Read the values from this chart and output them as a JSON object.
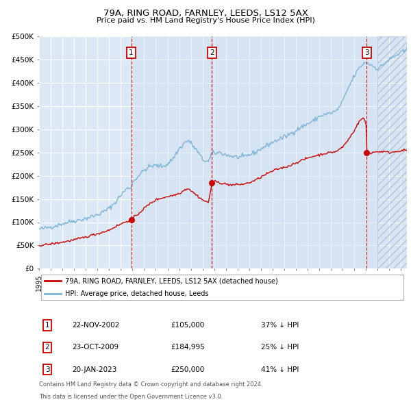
{
  "title1": "79A, RING ROAD, FARNLEY, LEEDS, LS12 5AX",
  "title2": "Price paid vs. HM Land Registry's House Price Index (HPI)",
  "ylabel_ticks": [
    "£0",
    "£50K",
    "£100K",
    "£150K",
    "£200K",
    "£250K",
    "£300K",
    "£350K",
    "£400K",
    "£450K",
    "£500K"
  ],
  "ytick_values": [
    0,
    50000,
    100000,
    150000,
    200000,
    250000,
    300000,
    350000,
    400000,
    450000,
    500000
  ],
  "xlim_start": 1995.0,
  "xlim_end": 2026.5,
  "ylim_min": 0,
  "ylim_max": 500000,
  "sale_dates": [
    2002.896,
    2009.811,
    2023.055
  ],
  "sale_prices": [
    105000,
    184995,
    250000
  ],
  "sale_labels": [
    "1",
    "2",
    "3"
  ],
  "sale_date_strings": [
    "22-NOV-2002",
    "23-OCT-2009",
    "20-JAN-2023"
  ],
  "sale_price_strings": [
    "£105,000",
    "£184,995",
    "£250,000"
  ],
  "sale_hpi_strings": [
    "37% ↓ HPI",
    "25% ↓ HPI",
    "41% ↓ HPI"
  ],
  "hpi_color": "#7ab4d8",
  "sold_color": "#cc0000",
  "legend_label_sold": "79A, RING ROAD, FARNLEY, LEEDS, LS12 5AX (detached house)",
  "legend_label_hpi": "HPI: Average price, detached house, Leeds",
  "footer1": "Contains HM Land Registry data © Crown copyright and database right 2024.",
  "footer2": "This data is licensed under the Open Government Licence v3.0.",
  "background_color": "#ffffff",
  "plot_bg_color": "#dce8f5",
  "grid_color": "#ffffff",
  "band_color": "#c8dcf0",
  "hatch_color": "#b8ccd8"
}
